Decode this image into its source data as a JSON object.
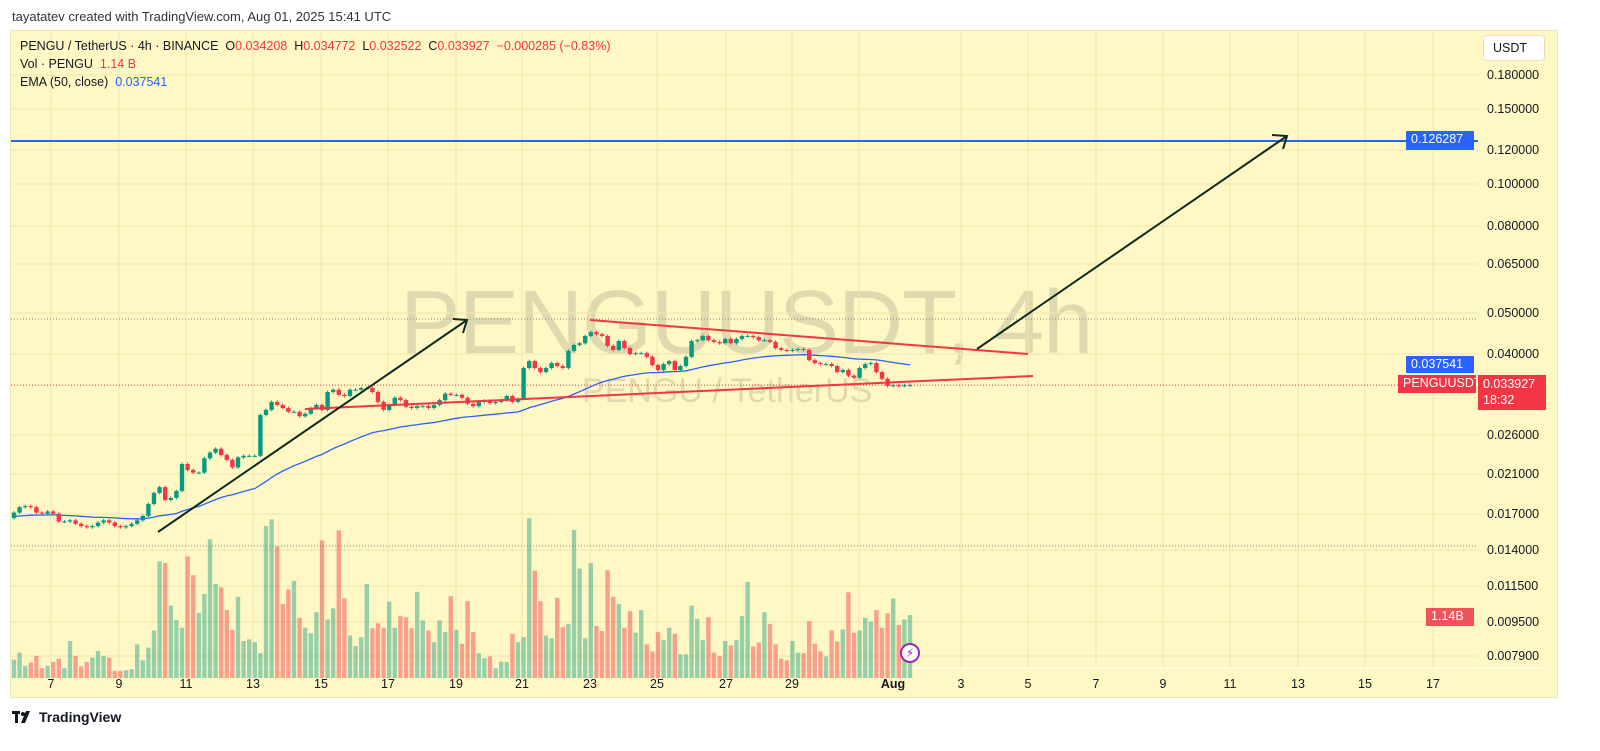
{
  "credit": "tayatatev created with TradingView.com, Aug 01, 2025 15:41 UTC",
  "legend": {
    "symbol": "PENGU / TetherUS · 4h · BINANCE",
    "open_label": "O",
    "open": "0.034208",
    "high_label": "H",
    "high": "0.034772",
    "low_label": "L",
    "low": "0.032522",
    "close_label": "C",
    "close": "0.033927",
    "change": "−0.000285 (−0.83%)",
    "vol_label": "Vol · PENGU",
    "vol": "1.14 B",
    "ema_label": "EMA (50, close)",
    "ema": "0.037541"
  },
  "watermark": {
    "title": "PENGUUSDT, 4h",
    "subtitle": "PENGU / TetherUS"
  },
  "currency_button": "USDT",
  "price_axis": [
    "0.180000",
    "0.150000",
    "0.120000",
    "0.100000",
    "0.080000",
    "0.065000",
    "0.050000",
    "0.040000",
    "0.026000",
    "0.021000",
    "0.017000",
    "0.014000",
    "0.011500",
    "0.009500",
    "0.007900"
  ],
  "price_axis_scale": "log",
  "time_axis": [
    "7",
    "9",
    "11",
    "13",
    "15",
    "17",
    "19",
    "21",
    "23",
    "25",
    "27",
    "29",
    "Aug",
    "3",
    "5",
    "7",
    "9",
    "11",
    "13",
    "15",
    "17"
  ],
  "tags": {
    "target": "0.126287",
    "ema": "0.037541",
    "symbol": "PENGUUSDT",
    "price": "0.033927",
    "countdown": "18:32",
    "volume": "1.14B"
  },
  "colors": {
    "up": "#089981",
    "down": "#f23645",
    "ema": "#2962ff",
    "target_line": "#2962ff",
    "trendline": "#f23645",
    "arrow": "#0f2a1e",
    "background": "#fff8c4"
  },
  "icons": {
    "alert": "lightning-icon",
    "logo": "tradingview-logo"
  },
  "brand": "TradingView",
  "chart_data": {
    "type": "candlestick",
    "interval": "4h",
    "first_open": 0.0166,
    "close": [
      0.0171,
      0.0176,
      0.0177,
      0.0176,
      0.0171,
      0.017,
      0.0172,
      0.017,
      0.0163,
      0.0163,
      0.0164,
      0.0161,
      0.0159,
      0.0158,
      0.0159,
      0.0162,
      0.0164,
      0.0162,
      0.0159,
      0.0158,
      0.0159,
      0.0161,
      0.0164,
      0.0168,
      0.0179,
      0.019,
      0.0196,
      0.0183,
      0.0185,
      0.0192,
      0.0222,
      0.0215,
      0.0212,
      0.0212,
      0.0229,
      0.0236,
      0.0241,
      0.0233,
      0.0227,
      0.0218,
      0.023,
      0.0232,
      0.0232,
      0.0232,
      0.0289,
      0.0297,
      0.031,
      0.0305,
      0.03,
      0.0294,
      0.0294,
      0.0287,
      0.0291,
      0.03,
      0.0305,
      0.0297,
      0.0327,
      0.0331,
      0.0322,
      0.032,
      0.0331,
      0.0331,
      0.0334,
      0.0334,
      0.0327,
      0.031,
      0.0297,
      0.0305,
      0.0317,
      0.0313,
      0.0302,
      0.03,
      0.0303,
      0.0303,
      0.03,
      0.0305,
      0.0313,
      0.0324,
      0.0322,
      0.0322,
      0.0317,
      0.0307,
      0.0303,
      0.031,
      0.0312,
      0.0308,
      0.031,
      0.0313,
      0.032,
      0.031,
      0.0315,
      0.0372,
      0.0386,
      0.0372,
      0.0364,
      0.0372,
      0.0382,
      0.0376,
      0.0372,
      0.0408,
      0.0421,
      0.0425,
      0.0442,
      0.0451,
      0.0446,
      0.0442,
      0.0419,
      0.041,
      0.043,
      0.0414,
      0.0401,
      0.0403,
      0.0403,
      0.0395,
      0.0378,
      0.0368,
      0.038,
      0.0386,
      0.0368,
      0.0376,
      0.0395,
      0.043,
      0.0432,
      0.0442,
      0.0432,
      0.0428,
      0.0425,
      0.0435,
      0.0425,
      0.0435,
      0.0442,
      0.0442,
      0.0439,
      0.0432,
      0.0432,
      0.0428,
      0.0414,
      0.041,
      0.0408,
      0.041,
      0.0412,
      0.041,
      0.0388,
      0.0382,
      0.038,
      0.038,
      0.0376,
      0.0364,
      0.0368,
      0.0357,
      0.0353,
      0.0372,
      0.038,
      0.0382,
      0.0364,
      0.0351,
      0.0338,
      0.0339,
      0.0338,
      0.0339,
      0.033927
    ],
    "volume_billions": [
      0.33,
      0.46,
      0.22,
      0.28,
      0.4,
      0.18,
      0.22,
      0.29,
      0.35,
      0.18,
      0.67,
      0.4,
      0.21,
      0.29,
      0.37,
      0.49,
      0.4,
      0.37,
      0.13,
      0.13,
      0.14,
      0.16,
      0.61,
      0.32,
      0.55,
      0.86,
      2.11,
      2.08,
      1.31,
      1.05,
      0.91,
      2.2,
      1.86,
      1.18,
      1.52,
      2.51,
      1.7,
      1.64,
      1.23,
      0.87,
      1.47,
      0.67,
      0.7,
      0.65,
      0.45,
      2.75,
      2.87,
      2.38,
      1.34,
      1.6,
      1.76,
      1.09,
      0.91,
      0.81,
      1.19,
      2.49,
      1.06,
      1.26,
      2.67,
      1.44,
      0.77,
      0.58,
      0.74,
      1.7,
      0.9,
      0.99,
      0.91,
      1.38,
      0.91,
      1.12,
      1.1,
      0.9,
      1.56,
      1.04,
      0.86,
      0.65,
      1.04,
      0.83,
      1.48,
      0.87,
      0.62,
      1.39,
      0.83,
      0.45,
      0.36,
      0.39,
      0.18,
      0.3,
      0.29,
      0.8,
      0.65,
      0.74,
      2.89,
      1.94,
      1.39,
      0.77,
      0.72,
      1.45,
      0.92,
      0.98,
      2.68,
      1.98,
      0.72,
      2.08,
      0.94,
      0.85,
      1.95,
      1.47,
      1.34,
      0.91,
      1.21,
      0.82,
      1.23,
      0.61,
      0.48,
      0.83,
      0.69,
      0.91,
      0.8,
      0.43,
      0.43,
      1.31,
      1.07,
      0.69,
      1.1,
      0.46,
      0.4,
      0.67,
      0.59,
      0.69,
      1.12,
      1.74,
      0.57,
      0.64,
      1.19,
      0.98,
      0.61,
      0.35,
      0.32,
      0.67,
      0.46,
      0.45,
      1.03,
      0.62,
      0.48,
      0.39,
      0.86,
      0.66,
      0.88,
      1.55,
      0.82,
      0.86,
      1.09,
      1.02,
      1.23,
      0.91,
      1.17,
      1.44,
      0.96,
      1.06,
      1.14
    ],
    "indicators": [
      {
        "name": "EMA (50, close)",
        "last": 0.037541
      }
    ],
    "horizontal_line": 0.126287,
    "ylim": [
      0.0075,
      0.2
    ],
    "grid": true
  }
}
